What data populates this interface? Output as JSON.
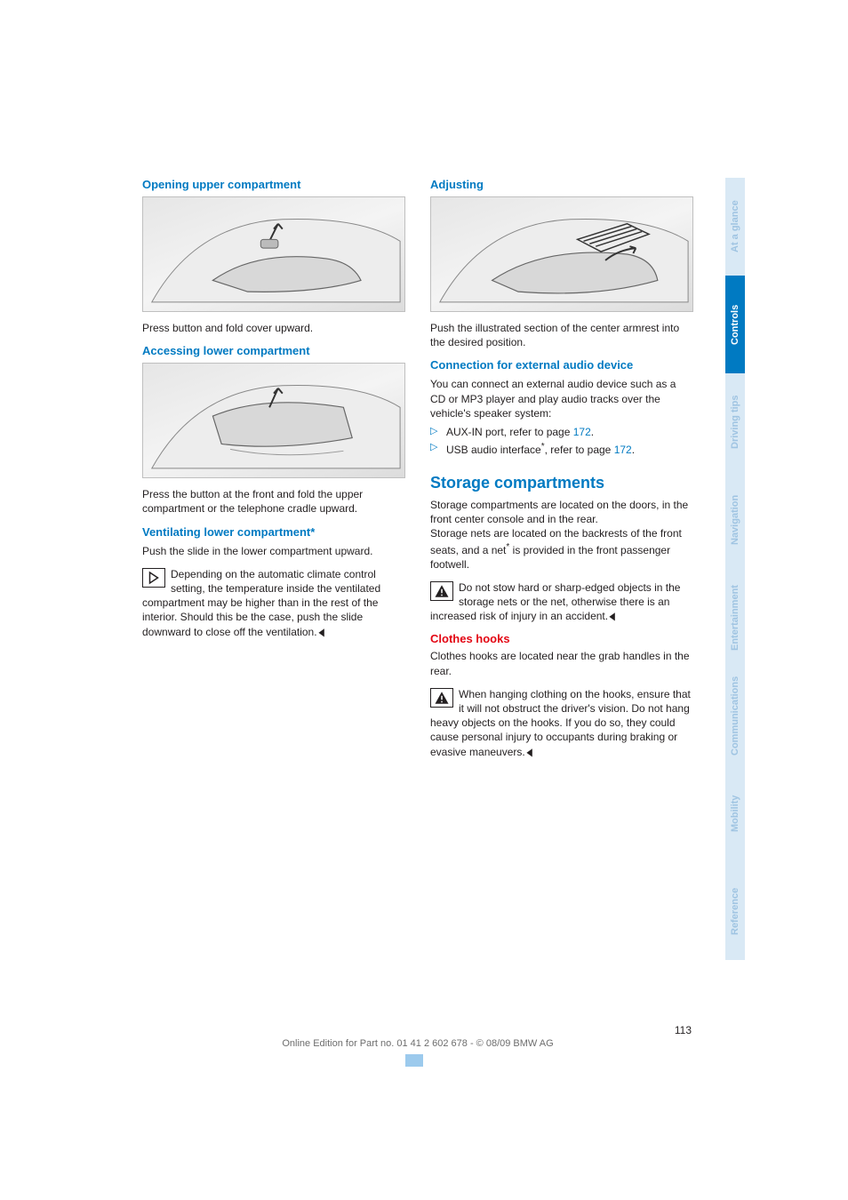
{
  "colors": {
    "heading_blue": "#007ac2",
    "subhead_red": "#e30613",
    "body_text": "#231f20",
    "footer_grey": "#6d6d6d",
    "tab_active_bg": "#007ac2",
    "tab_active_text": "#ffffff",
    "tab_inactive_bg": "#d9e9f5",
    "tab_inactive_text": "#9fc4e2",
    "light_tab_bg": "#ffffff",
    "footer_bar": "#9ccaed"
  },
  "tabs": [
    {
      "label": "At a glance",
      "active": false
    },
    {
      "label": "Controls",
      "active": true
    },
    {
      "label": "Driving tips",
      "active": false
    },
    {
      "label": "Navigation",
      "active": false
    },
    {
      "label": "Entertainment",
      "active": false
    },
    {
      "label": "Communications",
      "active": false
    },
    {
      "label": "Mobility",
      "active": false
    },
    {
      "label": "Reference",
      "active": false
    }
  ],
  "left": {
    "s1": {
      "title": "Opening upper compartment",
      "caption": "Press button and fold cover upward."
    },
    "s2": {
      "title": "Accessing lower compartment",
      "caption": "Press the button at the front and fold the upper compartment or the telephone cradle upward."
    },
    "s3": {
      "title": "Ventilating lower compartment*",
      "p1": "Push the slide in the lower compartment upward.",
      "note": "Depending on the automatic climate control setting, the temperature inside the ventilated compartment may be higher than in the rest of the interior. Should this be the case, push the slide downward to close off the ventilation."
    }
  },
  "right": {
    "s1": {
      "title": "Adjusting",
      "caption": "Push the illustrated section of the center armrest into the desired position."
    },
    "s2": {
      "title": "Connection for external audio device",
      "p": "You can connect an external audio device such as a CD or MP3 player and play audio tracks over the vehicle's speaker system:",
      "b1a": "AUX-IN port, refer to page ",
      "b1b": "172",
      "b1c": ".",
      "b2a": "USB audio interface",
      "b2b": ", refer to page ",
      "b2c": "172",
      "b2d": "."
    },
    "s3": {
      "title": "Storage compartments",
      "p1": "Storage compartments are located on the doors, in the front center console and in the rear.",
      "p2a": "Storage nets are located on the backrests of the front seats, and a net",
      "p2b": " is provided in the front passenger footwell.",
      "warn": "Do not stow hard or sharp-edged objects in the storage nets or the net, otherwise there is an increased risk of injury in an accident."
    },
    "s4": {
      "title": "Clothes hooks",
      "p": "Clothes hooks are located near the grab handles in the rear.",
      "warn": "When hanging clothing on the hooks, ensure that it will not obstruct the driver's vision. Do not hang heavy objects on the hooks. If you do so, they could cause personal injury to occupants during braking or evasive maneuvers."
    }
  },
  "footer": {
    "page": "113",
    "line": "Online Edition for Part no. 01 41 2 602 678 - © 08/09 BMW AG"
  }
}
